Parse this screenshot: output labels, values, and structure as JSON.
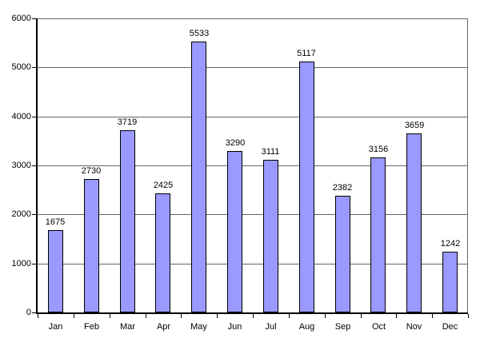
{
  "chart_data": {
    "type": "bar",
    "title": "",
    "xlabel": "",
    "ylabel": "",
    "categories": [
      "Jan",
      "Feb",
      "Mar",
      "Apr",
      "May",
      "Jun",
      "Jul",
      "Aug",
      "Sep",
      "Oct",
      "Nov",
      "Dec"
    ],
    "values": [
      1675,
      2730,
      3719,
      2425,
      5533,
      3290,
      3111,
      5117,
      2382,
      3156,
      3659,
      1242
    ],
    "data_labels": [
      "1675",
      "2730",
      "3719",
      "2425",
      "5533",
      "3290",
      "3111",
      "5117",
      "2382",
      "3156",
      "3659",
      "1242"
    ],
    "ylim": [
      0,
      6000
    ],
    "ytick_step": 1000,
    "ytick_labels": [
      "0",
      "1000",
      "2000",
      "3000",
      "4000",
      "5000",
      "6000"
    ],
    "grid": true,
    "legend": false,
    "colors": {
      "bar_fill": "#9999FF",
      "bar_border": "#000000",
      "gridline": "#666666",
      "axis": "#000000",
      "background": "#FFFFFF",
      "text": "#000000"
    }
  }
}
